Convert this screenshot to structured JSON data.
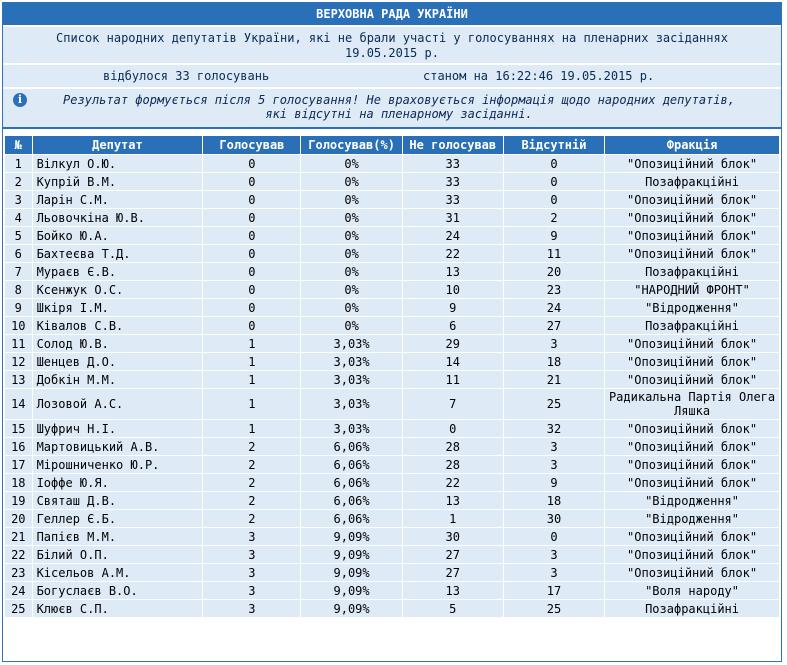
{
  "header": {
    "title": "ВЕРХОВНА РАДА УКРАЇНИ",
    "subtitle_line1": "Список народних депутатів України, які не брали участі у голосуваннях на пленарних засіданнях",
    "subtitle_line2": "19.05.2015 р.",
    "votes_held": "відбулося 33 голосувань",
    "as_of": "станом на 16:22:46 19.05.2015 р.",
    "note_line1": "Результат формується після 5 голосування! Не враховується інформація щодо народних депутатів,",
    "note_line2": "які відсутні на пленарному засіданні.",
    "info_icon": "info-icon"
  },
  "table": {
    "columns": [
      "№",
      "Депутат",
      "Голосував",
      "Голосував(%)",
      "Не голосував",
      "Відсутній",
      "Фракція"
    ],
    "rows": [
      {
        "n": "1",
        "name": "Вілкул О.Ю.",
        "voted": "0",
        "pct": "0%",
        "not_voted": "33",
        "absent": "0",
        "faction": "\"Опозиційний блок\""
      },
      {
        "n": "2",
        "name": "Купрій В.М.",
        "voted": "0",
        "pct": "0%",
        "not_voted": "33",
        "absent": "0",
        "faction": "Позафракційні"
      },
      {
        "n": "3",
        "name": "Ларін С.М.",
        "voted": "0",
        "pct": "0%",
        "not_voted": "33",
        "absent": "0",
        "faction": "\"Опозиційний блок\""
      },
      {
        "n": "4",
        "name": "Льовочкіна Ю.В.",
        "voted": "0",
        "pct": "0%",
        "not_voted": "31",
        "absent": "2",
        "faction": "\"Опозиційний блок\""
      },
      {
        "n": "5",
        "name": "Бойко Ю.А.",
        "voted": "0",
        "pct": "0%",
        "not_voted": "24",
        "absent": "9",
        "faction": "\"Опозиційний блок\""
      },
      {
        "n": "6",
        "name": "Бахтеєва Т.Д.",
        "voted": "0",
        "pct": "0%",
        "not_voted": "22",
        "absent": "11",
        "faction": "\"Опозиційний блок\""
      },
      {
        "n": "7",
        "name": "Мураєв Є.В.",
        "voted": "0",
        "pct": "0%",
        "not_voted": "13",
        "absent": "20",
        "faction": "Позафракційні"
      },
      {
        "n": "8",
        "name": "Ксенжук О.С.",
        "voted": "0",
        "pct": "0%",
        "not_voted": "10",
        "absent": "23",
        "faction": "\"НАРОДНИЙ ФРОНТ\""
      },
      {
        "n": "9",
        "name": "Шкіря І.М.",
        "voted": "0",
        "pct": "0%",
        "not_voted": "9",
        "absent": "24",
        "faction": "\"Відродження\""
      },
      {
        "n": "10",
        "name": "Ківалов С.В.",
        "voted": "0",
        "pct": "0%",
        "not_voted": "6",
        "absent": "27",
        "faction": "Позафракційні"
      },
      {
        "n": "11",
        "name": "Солод Ю.В.",
        "voted": "1",
        "pct": "3,03%",
        "not_voted": "29",
        "absent": "3",
        "faction": "\"Опозиційний блок\""
      },
      {
        "n": "12",
        "name": "Шенцев Д.О.",
        "voted": "1",
        "pct": "3,03%",
        "not_voted": "14",
        "absent": "18",
        "faction": "\"Опозиційний блок\""
      },
      {
        "n": "13",
        "name": "Добкін М.М.",
        "voted": "1",
        "pct": "3,03%",
        "not_voted": "11",
        "absent": "21",
        "faction": "\"Опозиційний блок\""
      },
      {
        "n": "14",
        "name": "Лозовой А.С.",
        "voted": "1",
        "pct": "3,03%",
        "not_voted": "7",
        "absent": "25",
        "faction": "Радикальна Партія Олега Ляшка",
        "tall": true
      },
      {
        "n": "15",
        "name": "Шуфрич Н.І.",
        "voted": "1",
        "pct": "3,03%",
        "not_voted": "0",
        "absent": "32",
        "faction": "\"Опозиційний блок\""
      },
      {
        "n": "16",
        "name": "Мартовицький А.В.",
        "voted": "2",
        "pct": "6,06%",
        "not_voted": "28",
        "absent": "3",
        "faction": "\"Опозиційний блок\""
      },
      {
        "n": "17",
        "name": "Мірошниченко Ю.Р.",
        "voted": "2",
        "pct": "6,06%",
        "not_voted": "28",
        "absent": "3",
        "faction": "\"Опозиційний блок\""
      },
      {
        "n": "18",
        "name": "Іоффе Ю.Я.",
        "voted": "2",
        "pct": "6,06%",
        "not_voted": "22",
        "absent": "9",
        "faction": "\"Опозиційний блок\""
      },
      {
        "n": "19",
        "name": "Святаш Д.В.",
        "voted": "2",
        "pct": "6,06%",
        "not_voted": "13",
        "absent": "18",
        "faction": "\"Відродження\""
      },
      {
        "n": "20",
        "name": "Геллер Є.Б.",
        "voted": "2",
        "pct": "6,06%",
        "not_voted": "1",
        "absent": "30",
        "faction": "\"Відродження\""
      },
      {
        "n": "21",
        "name": "Папієв М.М.",
        "voted": "3",
        "pct": "9,09%",
        "not_voted": "30",
        "absent": "0",
        "faction": "\"Опозиційний блок\""
      },
      {
        "n": "22",
        "name": "Білий О.П.",
        "voted": "3",
        "pct": "9,09%",
        "not_voted": "27",
        "absent": "3",
        "faction": "\"Опозиційний блок\""
      },
      {
        "n": "23",
        "name": "Кісельов А.М.",
        "voted": "3",
        "pct": "9,09%",
        "not_voted": "27",
        "absent": "3",
        "faction": "\"Опозиційний блок\""
      },
      {
        "n": "24",
        "name": "Богуслаєв В.О.",
        "voted": "3",
        "pct": "9,09%",
        "not_voted": "13",
        "absent": "17",
        "faction": "\"Воля народу\""
      },
      {
        "n": "25",
        "name": "Клюєв С.П.",
        "voted": "3",
        "pct": "9,09%",
        "not_voted": "5",
        "absent": "25",
        "faction": "Позафракційні"
      }
    ]
  },
  "colors": {
    "header_bg": "#2a70b8",
    "row_bg": "#dfeaf7",
    "border": "#2f73b4"
  }
}
